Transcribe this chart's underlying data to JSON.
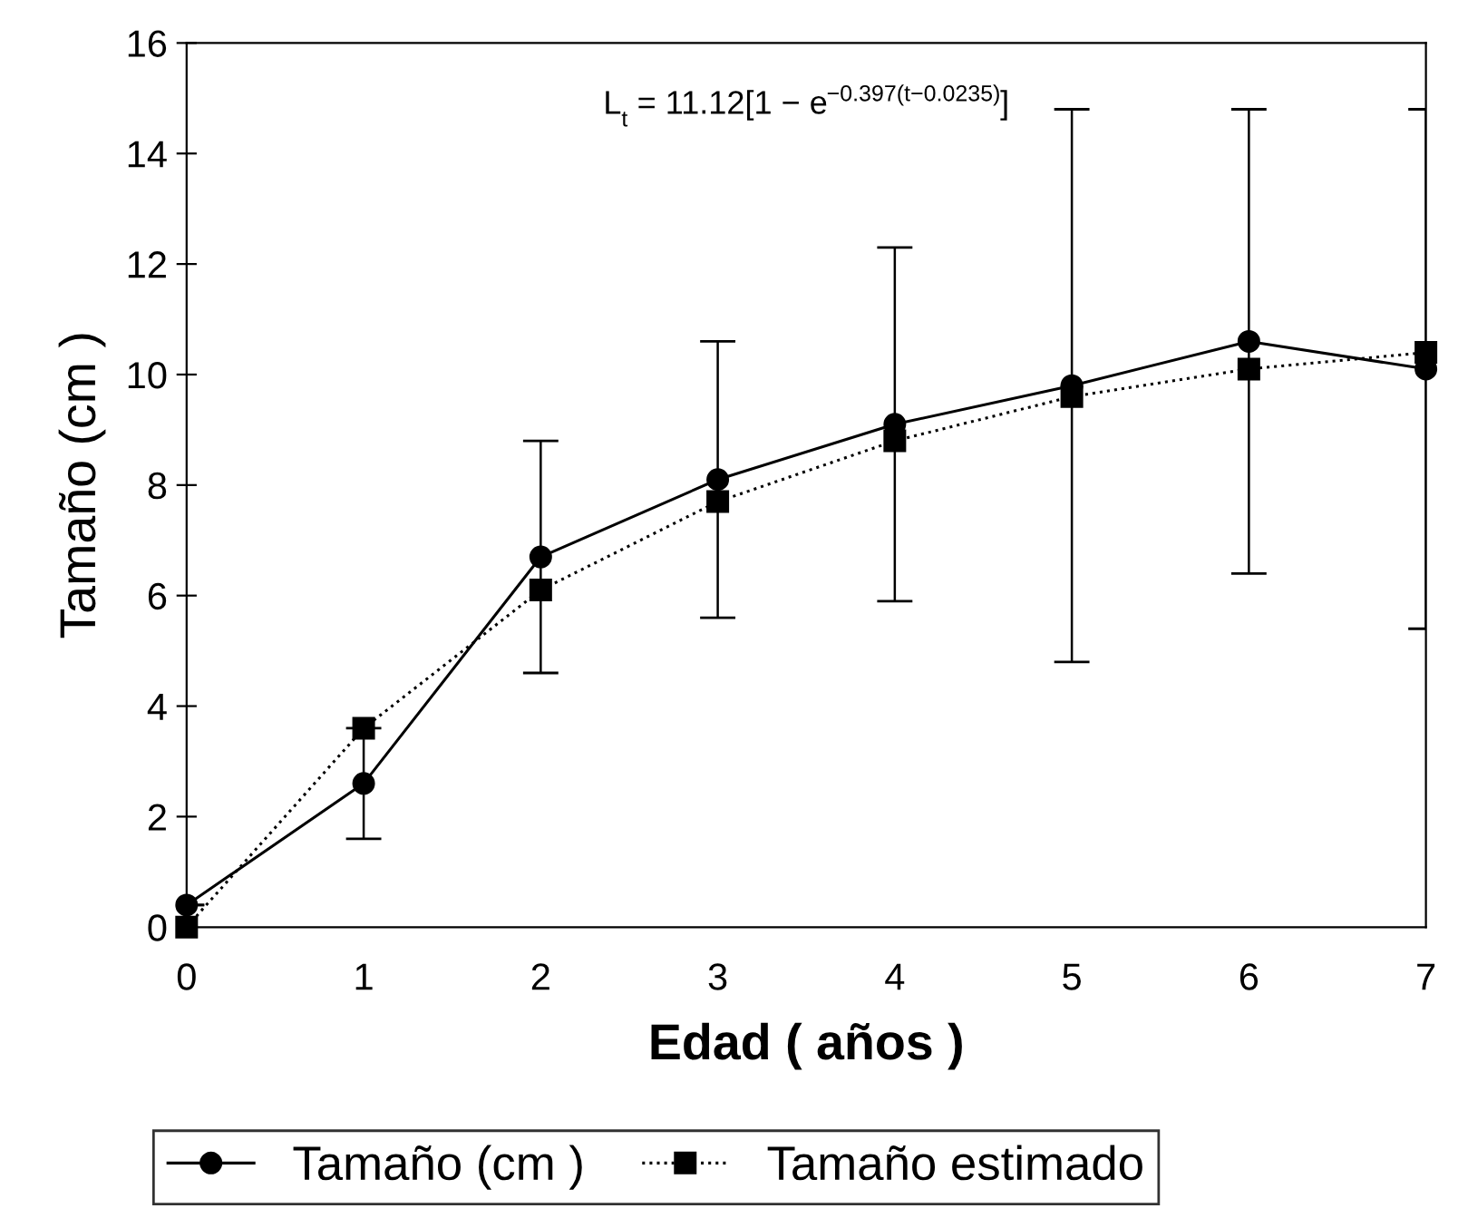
{
  "chart_data": {
    "type": "line",
    "xlabel": "Edad ( años )",
    "ylabel": "Tamaño (cm )",
    "x": [
      0,
      1,
      2,
      3,
      4,
      5,
      6,
      7
    ],
    "series": [
      {
        "name": "Tamaño (cm )",
        "color": "#000000",
        "values": [
          0.4,
          2.6,
          6.7,
          8.1,
          9.1,
          9.8,
          10.6,
          10.1
        ],
        "errors": [
          null,
          1.0,
          2.1,
          2.5,
          3.2,
          5.0,
          4.2,
          4.7
        ],
        "marker": "circle",
        "line_style": "solid"
      },
      {
        "name": "Tamaño estimado",
        "color": "#000000",
        "values": [
          0,
          3.6,
          6.1,
          7.7,
          8.8,
          9.6,
          10.1,
          10.4
        ],
        "marker": "square",
        "line_style": "dotted"
      }
    ],
    "annotations": [
      "L$_{t}$ = 11.12[1 − e$^{−0.397(t−0.0235)}$]"
    ],
    "xlim": [
      0,
      7
    ],
    "ylim": [
      0,
      16
    ],
    "xticks": [
      0,
      1,
      2,
      3,
      4,
      5,
      6,
      7
    ],
    "yticks": [
      0,
      2,
      4,
      6,
      8,
      10,
      12,
      14,
      16
    ],
    "grid": false,
    "legend": "bottom"
  }
}
